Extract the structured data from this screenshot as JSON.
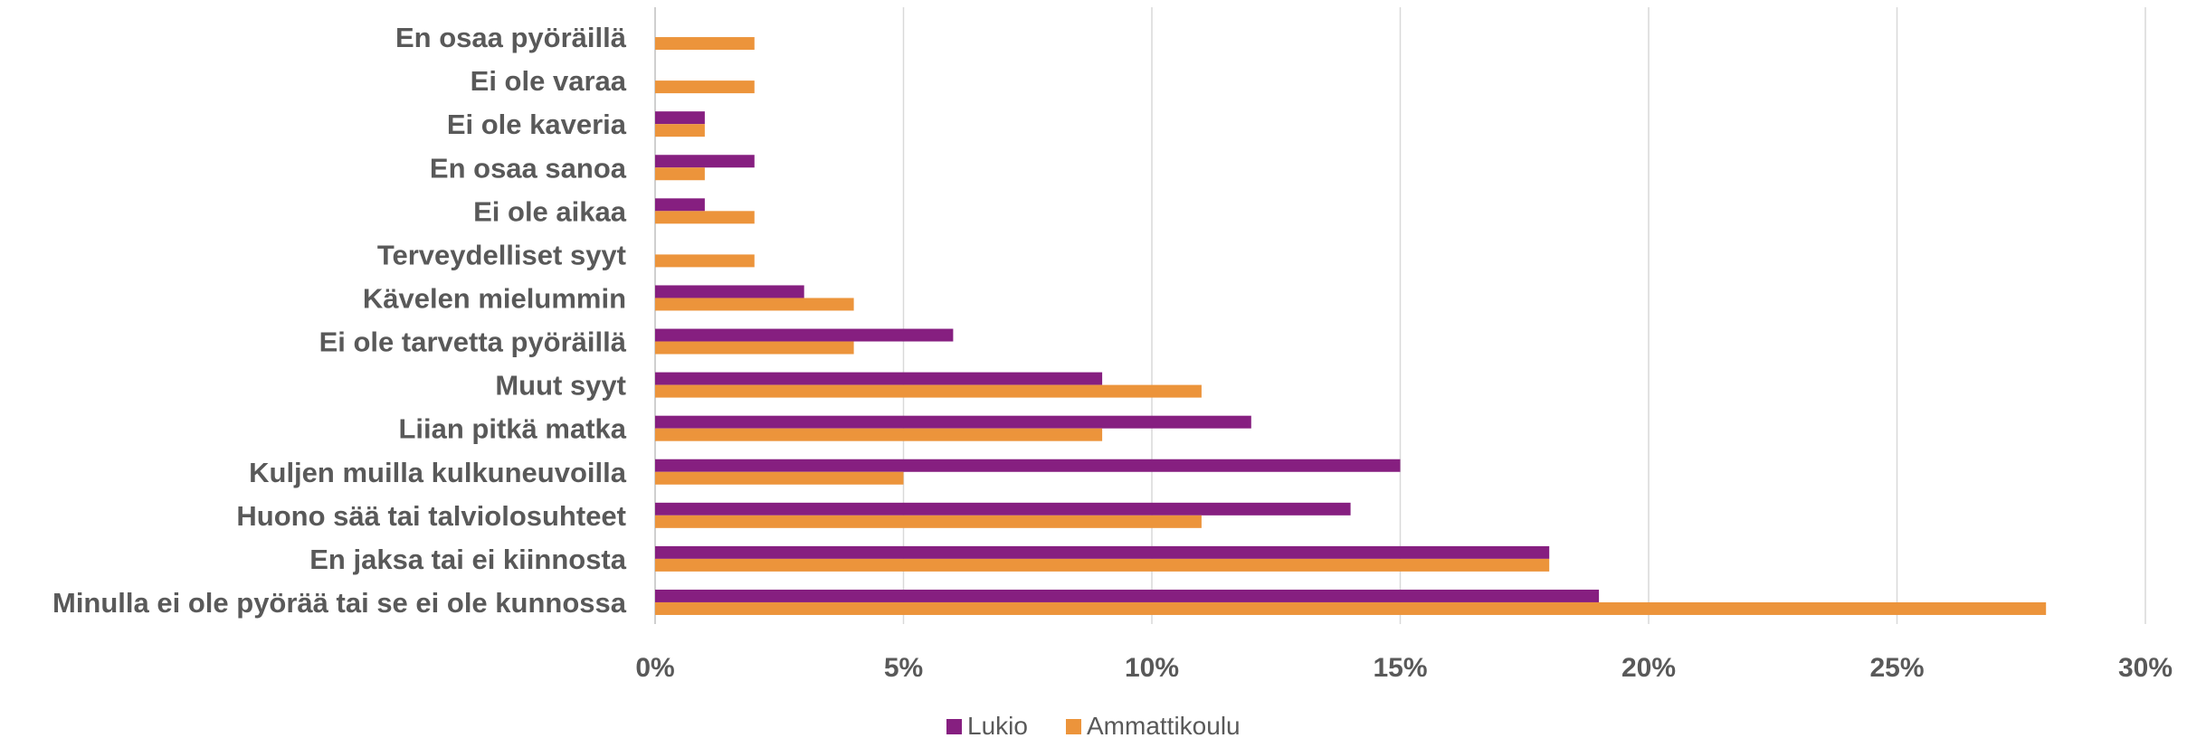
{
  "chart_data": {
    "type": "bar",
    "orientation": "horizontal",
    "categories": [
      "En osaa pyöräillä",
      "Ei ole varaa",
      "Ei ole kaveria",
      "En osaa sanoa",
      "Ei ole aikaa",
      "Terveydelliset syyt",
      "Kävelen mielummin",
      "Ei ole tarvetta pyöräillä",
      "Muut syyt",
      "Liian pitkä matka",
      "Kuljen muilla kulkuneuvoilla",
      "Huono sää tai talviolosuhteet",
      "En jaksa tai ei kiinnosta",
      "Minulla ei ole pyörää tai se ei ole kunnossa"
    ],
    "series": [
      {
        "name": "Lukio",
        "color": "#861f80",
        "values": [
          0,
          0,
          1,
          2,
          1,
          0,
          3,
          6,
          9,
          12,
          15,
          14,
          18,
          19
        ]
      },
      {
        "name": "Ammattikoulu",
        "color": "#ec943b",
        "values": [
          2,
          2,
          1,
          1,
          2,
          2,
          4,
          4,
          11,
          9,
          5,
          11,
          18,
          28
        ]
      }
    ],
    "xlim": [
      0,
      30
    ],
    "xticks": [
      "0%",
      "5%",
      "10%",
      "15%",
      "20%",
      "25%",
      "30%"
    ],
    "grid": true,
    "legend": "bottom",
    "title": "",
    "xlabel": "",
    "ylabel": ""
  }
}
